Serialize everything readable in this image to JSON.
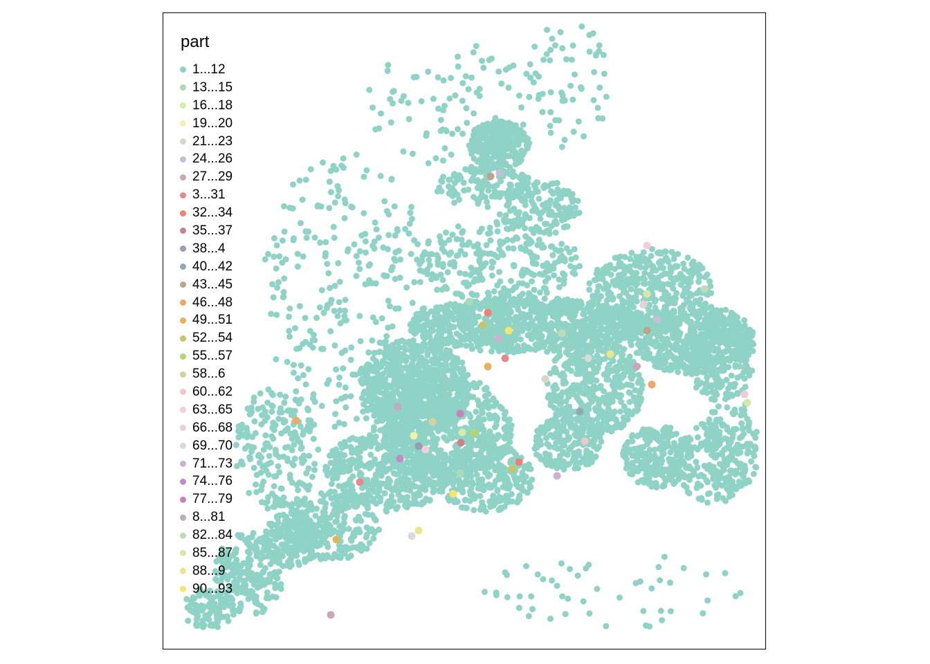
{
  "legend": {
    "title": "part",
    "items": [
      {
        "label": "1...12",
        "color": "#8fd3c7"
      },
      {
        "label": "13...15",
        "color": "#a8dcb5"
      },
      {
        "label": "16...18",
        "color": "#d3ecab"
      },
      {
        "label": "19...20",
        "color": "#f1f2ad"
      },
      {
        "label": "21...23",
        "color": "#d8d6c6"
      },
      {
        "label": "24...26",
        "color": "#c3c0d8"
      },
      {
        "label": "27...29",
        "color": "#c9a6b8"
      },
      {
        "label": "3...31",
        "color": "#e58a8a"
      },
      {
        "label": "32...34",
        "color": "#f27f73"
      },
      {
        "label": "35...37",
        "color": "#c9848a"
      },
      {
        "label": "38...4",
        "color": "#9a9cb2"
      },
      {
        "label": "40...42",
        "color": "#94a8b6"
      },
      {
        "label": "43...45",
        "color": "#bca68a"
      },
      {
        "label": "46...48",
        "color": "#f2a864"
      },
      {
        "label": "49...51",
        "color": "#e5b458"
      },
      {
        "label": "52...54",
        "color": "#c5c466"
      },
      {
        "label": "55...57",
        "color": "#b4d866"
      },
      {
        "label": "58...6",
        "color": "#d7d29a"
      },
      {
        "label": "60...62",
        "color": "#efc8cc"
      },
      {
        "label": "63...65",
        "color": "#f2cddb"
      },
      {
        "label": "66...68",
        "color": "#e8d0d8"
      },
      {
        "label": "69...70",
        "color": "#dadada"
      },
      {
        "label": "71...73",
        "color": "#cdb2cf"
      },
      {
        "label": "74...76",
        "color": "#bf8fc3"
      },
      {
        "label": "77...79",
        "color": "#c383b9"
      },
      {
        "label": "8...81",
        "color": "#bcadbb"
      },
      {
        "label": "82...84",
        "color": "#c0dab5"
      },
      {
        "label": "85...87",
        "color": "#d5eaa8"
      },
      {
        "label": "88...9",
        "color": "#ece68a"
      },
      {
        "label": "90...93",
        "color": "#fbe46a"
      }
    ]
  }
}
